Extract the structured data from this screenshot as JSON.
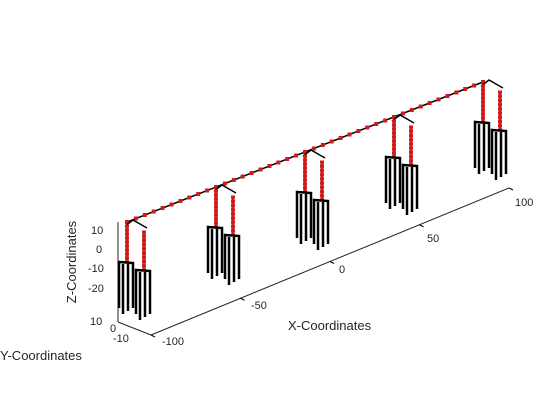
{
  "figure": {
    "type": "3d-line-plot",
    "grid": false,
    "colors": {
      "cable": "#000000",
      "lights": "#d11a1a",
      "axes": "#262626"
    }
  },
  "axes": {
    "x": {
      "label": "X-Coordinates",
      "ticks": [
        "-100",
        "-50",
        "0",
        "50",
        "100"
      ]
    },
    "y": {
      "label": "Y-Coordinates",
      "ticks": [
        "-10",
        "0",
        "10"
      ]
    },
    "z": {
      "label": "Z-Coordinates",
      "ticks": [
        "10",
        "0",
        "-10",
        "-20"
      ]
    }
  },
  "chart_data": {
    "type": "line",
    "title": "",
    "xlabel": "X-Coordinates",
    "ylabel": "Y-Coordinates",
    "zlabel": "Z-Coordinates",
    "xlim": [
      -100,
      100
    ],
    "ylim": [
      -10,
      10
    ],
    "zlim": [
      -25,
      15
    ],
    "towers_x": [
      -100,
      -50,
      0,
      50,
      100
    ],
    "top_line": {
      "x_start": -100,
      "x_end": 100,
      "z": 10,
      "color": "#000000"
    },
    "marker_series": {
      "name": "",
      "color": "#d11a1a",
      "marker": "square"
    },
    "drops_per_tower": 2,
    "legs_per_group": 4,
    "leg_z_range": [
      -25,
      -10
    ]
  }
}
